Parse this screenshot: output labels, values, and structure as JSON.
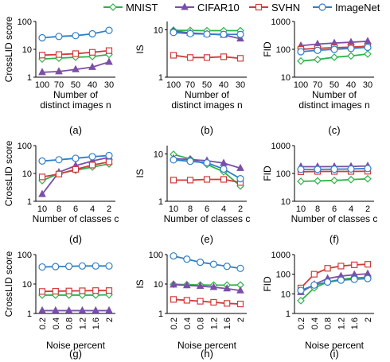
{
  "legend": {
    "position": "top",
    "series": [
      {
        "name": "MNIST",
        "color": "#2db34a",
        "marker": "diamond-open"
      },
      {
        "name": "CIFAR10",
        "color": "#7b4fa8",
        "marker": "triangle"
      },
      {
        "name": "SVHN",
        "color": "#d23b3b",
        "marker": "square-open"
      },
      {
        "name": "ImageNet",
        "color": "#2f7fc8",
        "marker": "circle-open"
      }
    ]
  },
  "chart_data": [
    {
      "type": "line",
      "panel": "(a)",
      "scale": "log",
      "ylim": [
        1,
        100
      ],
      "yticks": [
        "1",
        "10",
        "100"
      ],
      "ylabel": "CrossLID score",
      "xlabel": [
        "Number of",
        "distinct images n"
      ],
      "categories": [
        "100",
        "70",
        "50",
        "40",
        "30"
      ],
      "series": [
        {
          "name": "MNIST",
          "values": [
            4.5,
            4.8,
            5.2,
            5.5,
            6.5
          ]
        },
        {
          "name": "CIFAR10",
          "values": [
            1.5,
            1.6,
            1.9,
            2.3,
            3.5
          ]
        },
        {
          "name": "SVHN",
          "values": [
            6.2,
            6.5,
            7.0,
            7.8,
            9.0
          ]
        },
        {
          "name": "ImageNet",
          "values": [
            26,
            29,
            31,
            36,
            48
          ]
        }
      ]
    },
    {
      "type": "line",
      "panel": "(b)",
      "scale": "log",
      "ylim": [
        1,
        15
      ],
      "yticks": [
        "1",
        "10"
      ],
      "ylabel": "IS",
      "xlabel": [
        "Number of",
        "distinct images n"
      ],
      "categories": [
        "100",
        "70",
        "50",
        "40",
        "30"
      ],
      "series": [
        {
          "name": "MNIST",
          "values": [
            9.8,
            9.7,
            9.6,
            9.6,
            9.6
          ]
        },
        {
          "name": "CIFAR10",
          "values": [
            9.5,
            8.6,
            8.2,
            7.8,
            6.5
          ]
        },
        {
          "name": "SVHN",
          "values": [
            2.9,
            2.6,
            2.6,
            2.7,
            2.5
          ]
        },
        {
          "name": "ImageNet",
          "values": [
            8.8,
            8.3,
            8.1,
            8.0,
            8.0
          ]
        }
      ]
    },
    {
      "type": "line",
      "panel": "(c)",
      "scale": "log",
      "ylim": [
        10,
        1000
      ],
      "yticks": [
        "10",
        "100",
        "1000"
      ],
      "ylabel": "FID",
      "xlabel": [
        "Number of",
        "distinct images n"
      ],
      "categories": [
        "100",
        "70",
        "50",
        "40",
        "30"
      ],
      "series": [
        {
          "name": "MNIST",
          "values": [
            38,
            43,
            52,
            58,
            68
          ]
        },
        {
          "name": "CIFAR10",
          "values": [
            135,
            155,
            168,
            180,
            195
          ]
        },
        {
          "name": "SVHN",
          "values": [
            100,
            108,
            115,
            120,
            130
          ]
        },
        {
          "name": "ImageNet",
          "values": [
            82,
            92,
            100,
            108,
            118
          ]
        }
      ]
    },
    {
      "type": "line",
      "panel": "(d)",
      "scale": "log",
      "ylim": [
        1,
        100
      ],
      "yticks": [
        "1",
        "10",
        "100"
      ],
      "ylabel": "CrossLID score",
      "xlabel": [
        "Number of classes c"
      ],
      "categories": [
        "10",
        "8",
        "6",
        "4",
        "2"
      ],
      "series": [
        {
          "name": "MNIST",
          "values": [
            5.5,
            10,
            13,
            17,
            22
          ]
        },
        {
          "name": "CIFAR10",
          "values": [
            1.8,
            11,
            19,
            28,
            38
          ]
        },
        {
          "name": "SVHN",
          "values": [
            7.5,
            9.5,
            14,
            20,
            26
          ]
        },
        {
          "name": "ImageNet",
          "values": [
            28,
            31,
            35,
            40,
            44
          ]
        }
      ]
    },
    {
      "type": "line",
      "panel": "(e)",
      "scale": "log",
      "ylim": [
        1,
        15
      ],
      "yticks": [
        "1",
        "10"
      ],
      "ylabel": "IS",
      "xlabel": [
        "Number of classes c"
      ],
      "categories": [
        "10",
        "8",
        "6",
        "4",
        "2"
      ],
      "series": [
        {
          "name": "MNIST",
          "values": [
            9.8,
            7.8,
            6.0,
            4.2,
            2.1
          ]
        },
        {
          "name": "CIFAR10",
          "values": [
            8.0,
            7.6,
            7.2,
            6.4,
            5.0
          ]
        },
        {
          "name": "SVHN",
          "values": [
            2.8,
            2.8,
            2.9,
            2.9,
            2.5
          ]
        },
        {
          "name": "ImageNet",
          "values": [
            7.5,
            7.0,
            6.5,
            4.8,
            3.0
          ]
        }
      ]
    },
    {
      "type": "line",
      "panel": "(f)",
      "scale": "log",
      "ylim": [
        10,
        1000
      ],
      "yticks": [
        "10",
        "100",
        "1000"
      ],
      "ylabel": "FID",
      "xlabel": [
        "Number of classes c"
      ],
      "categories": [
        "10",
        "8",
        "6",
        "4",
        "2"
      ],
      "series": [
        {
          "name": "MNIST",
          "values": [
            52,
            54,
            56,
            60,
            64
          ]
        },
        {
          "name": "CIFAR10",
          "values": [
            175,
            175,
            176,
            178,
            185
          ]
        },
        {
          "name": "SVHN",
          "values": [
            115,
            118,
            118,
            118,
            120
          ]
        },
        {
          "name": "ImageNet",
          "values": [
            140,
            140,
            142,
            145,
            150
          ]
        }
      ]
    },
    {
      "type": "line",
      "panel": "(g)",
      "scale": "log",
      "ylim": [
        1,
        100
      ],
      "yticks": [
        "1",
        "10",
        "100"
      ],
      "ylabel": "CrossLID score",
      "xlabel": [
        "Noise percent"
      ],
      "categories": [
        "0.2",
        "0.4",
        "0.8",
        "1.2",
        "1.6",
        "2"
      ],
      "series": [
        {
          "name": "MNIST",
          "values": [
            4.2,
            4.2,
            4.2,
            4.2,
            4.2,
            4.3
          ]
        },
        {
          "name": "CIFAR10",
          "values": [
            1.25,
            1.25,
            1.25,
            1.25,
            1.25,
            1.25
          ]
        },
        {
          "name": "SVHN",
          "values": [
            5.6,
            5.7,
            5.8,
            5.9,
            6.0,
            6.0
          ]
        },
        {
          "name": "ImageNet",
          "values": [
            38,
            39,
            40,
            41,
            41,
            41
          ]
        }
      ]
    },
    {
      "type": "line",
      "panel": "(h)",
      "scale": "log",
      "ylim": [
        1,
        100
      ],
      "yticks": [
        "1",
        "10",
        "100"
      ],
      "ylabel": "IS",
      "xlabel": [
        "Noise percent"
      ],
      "categories": [
        "0.2",
        "0.4",
        "0.8",
        "1.2",
        "1.6",
        "2"
      ],
      "series": [
        {
          "name": "MNIST",
          "values": [
            9.8,
            9.5,
            9.3,
            9.2,
            9.2,
            9.3
          ]
        },
        {
          "name": "CIFAR10",
          "values": [
            9.5,
            9.0,
            8.5,
            7.8,
            7.0,
            6.0
          ]
        },
        {
          "name": "SVHN",
          "values": [
            3.0,
            2.8,
            2.6,
            2.4,
            2.2,
            2.1
          ]
        },
        {
          "name": "ImageNet",
          "values": [
            90,
            70,
            55,
            47,
            40,
            34
          ]
        }
      ]
    },
    {
      "type": "line",
      "panel": "(i)",
      "scale": "log",
      "ylim": [
        1,
        1000
      ],
      "yticks": [
        "1",
        "10",
        "100",
        "1000"
      ],
      "ylabel": "FID",
      "xlabel": [
        "Noise percent"
      ],
      "categories": [
        "0.2",
        "0.4",
        "0.8",
        "1.2",
        "1.6",
        "2"
      ],
      "series": [
        {
          "name": "MNIST",
          "values": [
            4.5,
            20,
            40,
            55,
            65,
            70
          ]
        },
        {
          "name": "CIFAR10",
          "values": [
            12,
            30,
            60,
            80,
            95,
            105
          ]
        },
        {
          "name": "SVHN",
          "values": [
            20,
            100,
            200,
            260,
            300,
            320
          ]
        },
        {
          "name": "ImageNet",
          "values": [
            15,
            28,
            40,
            50,
            55,
            60
          ]
        }
      ]
    }
  ]
}
